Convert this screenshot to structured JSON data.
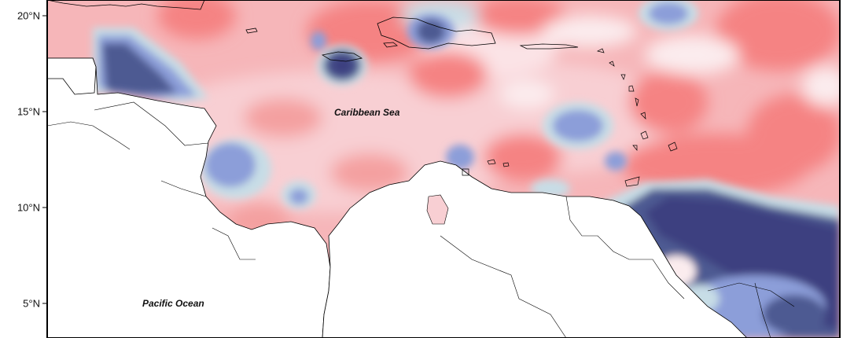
{
  "map": {
    "y_axis": {
      "ticks": [
        {
          "value": 20,
          "label": "20°N"
        },
        {
          "value": 15,
          "label": "15°N"
        },
        {
          "value": 10,
          "label": "10°N"
        },
        {
          "value": 5,
          "label": "5°N"
        }
      ]
    },
    "labels": {
      "caribbean": "Caribbean Sea",
      "pacific": "Pacific Ocean"
    },
    "colors": {
      "positive_strong": "#f58383",
      "positive_mid": "#f4a0a0",
      "positive_light": "#f8cfd3",
      "neutral": "#fbecee",
      "negative_light": "#c7dde6",
      "negative_mid": "#8c9ed9",
      "negative_strong": "#4e5a92",
      "negative_darkest": "#3c3f80",
      "land": "#ffffff",
      "coast": "#000000"
    }
  }
}
